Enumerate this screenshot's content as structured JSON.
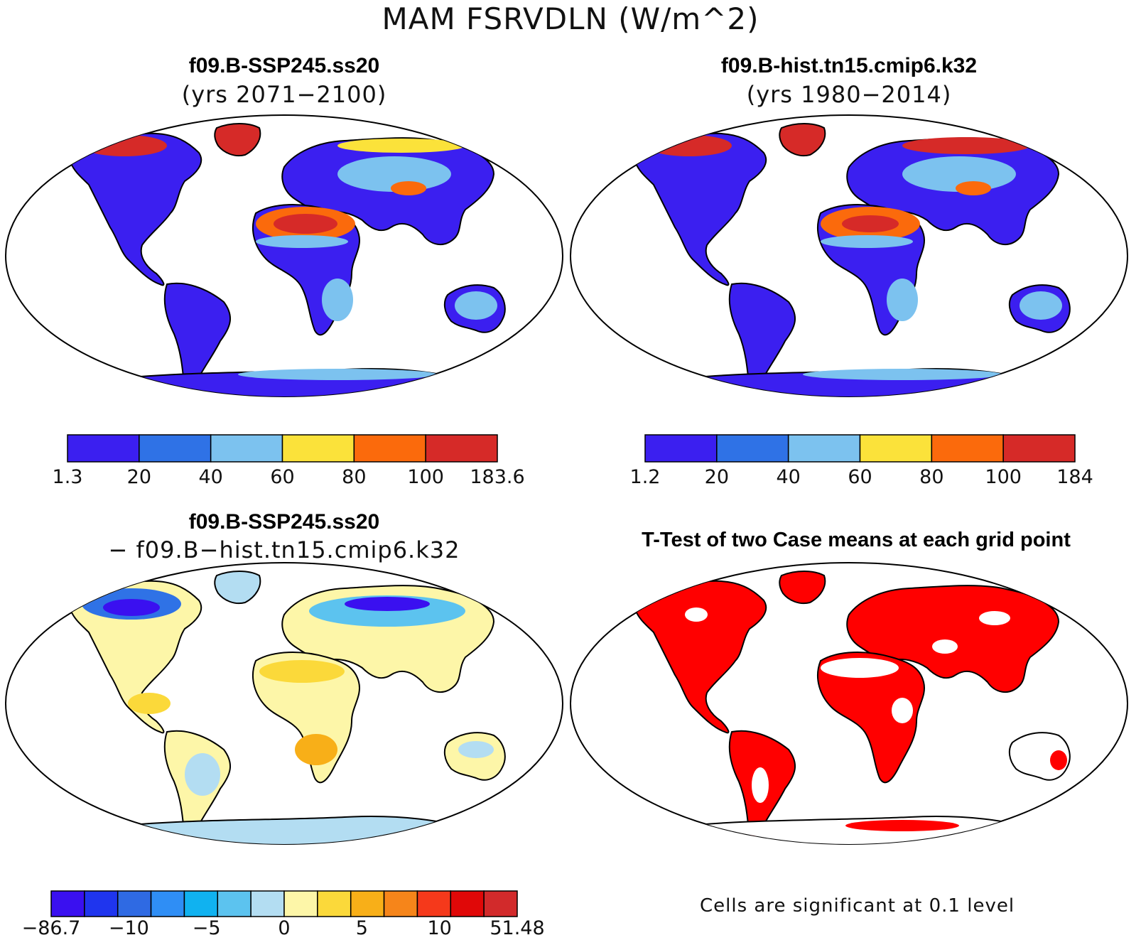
{
  "figure": {
    "title": "MAM FSRVDLN (W/m^2)"
  },
  "panels": [
    {
      "id": "case",
      "title": "f09.B-SSP245.ss20",
      "subtitle": "(yrs 2071−2100)",
      "colorbar": {
        "labels": [
          "1.3",
          "20",
          "40",
          "60",
          "80",
          "100",
          "183.6"
        ],
        "colors": [
          "#3b1ff0",
          "#2f72e6",
          "#7cc2ef",
          "#fbe23a",
          "#fb6a0c",
          "#d62a28"
        ]
      }
    },
    {
      "id": "control",
      "title": "f09.B-hist.tn15.cmip6.k32",
      "subtitle": "(yrs 1980−2014)",
      "colorbar": {
        "labels": [
          "1.2",
          "20",
          "40",
          "60",
          "80",
          "100",
          "184"
        ],
        "colors": [
          "#3b1ff0",
          "#2f72e6",
          "#7cc2ef",
          "#fbe23a",
          "#fb6a0c",
          "#d62a28"
        ]
      }
    },
    {
      "id": "difference",
      "title": "f09.B-SSP245.ss20",
      "subtitle": "− f09.B−hist.tn15.cmip6.k32",
      "colorbar": {
        "labels": [
          "−86.7",
          "−10",
          "−5",
          "0",
          "5",
          "10",
          "51.48"
        ],
        "colors": [
          "#3a10f0",
          "#1f35ee",
          "#2f6ae3",
          "#2f8ef5",
          "#10b2f0",
          "#5cc3ef",
          "#b3ddf2",
          "#fdf6a8",
          "#fbd93a",
          "#f8af18",
          "#f6851a",
          "#f5391b",
          "#e00808",
          "#d22a2b"
        ]
      }
    },
    {
      "id": "ttest",
      "title": "T-Test of two Case means at each grid point",
      "note": "Cells are significant at 0.1 level",
      "significant_color": "#ff0000"
    }
  ]
}
